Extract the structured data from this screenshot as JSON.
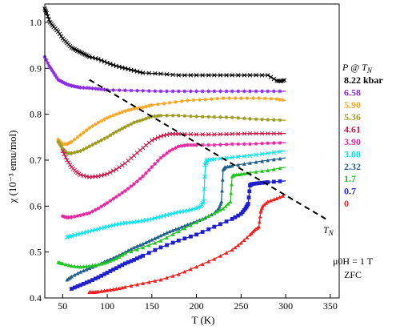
{
  "chart_data": {
    "type": "line",
    "xlabel": "T (K)",
    "ylabel": "χ (10⁻³ emu/mol)",
    "xlim": [
      30,
      360
    ],
    "ylim": [
      0.4,
      1.04
    ],
    "x_ticks": [
      50,
      100,
      150,
      200,
      250,
      300,
      350
    ],
    "y_ticks": [
      0.4,
      0.5,
      0.6,
      0.7,
      0.8,
      0.9,
      1.0
    ],
    "legend_title": "P @ T",
    "legend_title_sub": "N",
    "legend_placement": "right",
    "annotation_field": "μ0H = 1 T",
    "annotation_protocol": "ZFC",
    "tn_label": "T",
    "tn_label_sub": "N",
    "tn_line": {
      "x": [
        80,
        345
      ],
      "y": [
        0.875,
        0.572
      ]
    },
    "series": [
      {
        "name": "8.22 kbar",
        "color": "#000000",
        "marker": "x",
        "x": [
          30,
          32,
          36,
          40,
          45,
          50,
          55,
          60,
          65,
          70,
          75,
          80,
          90,
          100,
          110,
          120,
          130,
          140,
          160,
          180,
          200,
          220,
          240,
          260,
          280,
          290,
          295,
          300
        ],
        "y": [
          1.03,
          1.02,
          1.0,
          0.99,
          0.98,
          0.965,
          0.955,
          0.945,
          0.94,
          0.935,
          0.93,
          0.925,
          0.92,
          0.912,
          0.905,
          0.9,
          0.895,
          0.89,
          0.888,
          0.885,
          0.885,
          0.885,
          0.885,
          0.885,
          0.885,
          0.873,
          0.872,
          0.875
        ]
      },
      {
        "name": "6.58",
        "color": "#8a2be2",
        "marker": "star",
        "x": [
          30,
          35,
          40,
          45,
          50,
          55,
          60,
          65,
          70,
          80,
          90,
          100,
          120,
          140,
          160,
          180,
          200,
          220,
          240,
          260,
          280,
          300
        ],
        "y": [
          0.925,
          0.905,
          0.89,
          0.875,
          0.87,
          0.865,
          0.862,
          0.86,
          0.858,
          0.857,
          0.855,
          0.853,
          0.852,
          0.851,
          0.85,
          0.85,
          0.85,
          0.85,
          0.85,
          0.85,
          0.85,
          0.85
        ]
      },
      {
        "name": "5.90",
        "color": "#f5a623",
        "marker": "star",
        "x": [
          45,
          50,
          55,
          60,
          70,
          80,
          90,
          100,
          110,
          120,
          130,
          140,
          150,
          170,
          190,
          210,
          230,
          250,
          270,
          290,
          300
        ],
        "y": [
          0.745,
          0.735,
          0.735,
          0.74,
          0.755,
          0.77,
          0.782,
          0.792,
          0.8,
          0.807,
          0.812,
          0.815,
          0.82,
          0.825,
          0.83,
          0.832,
          0.835,
          0.835,
          0.835,
          0.833,
          0.83
        ]
      },
      {
        "name": "5.36",
        "color": "#9a9a1e",
        "marker": "star",
        "x": [
          45,
          50,
          55,
          60,
          70,
          80,
          90,
          100,
          110,
          120,
          130,
          140,
          150,
          160,
          180,
          200,
          220,
          240,
          260,
          280,
          300
        ],
        "y": [
          0.74,
          0.725,
          0.715,
          0.715,
          0.72,
          0.73,
          0.74,
          0.75,
          0.762,
          0.772,
          0.782,
          0.788,
          0.795,
          0.797,
          0.797,
          0.795,
          0.794,
          0.793,
          0.79,
          0.788,
          0.787
        ]
      },
      {
        "name": "4.61",
        "color": "#c8184a",
        "marker": "x",
        "x": [
          50,
          55,
          60,
          65,
          70,
          80,
          90,
          100,
          110,
          120,
          130,
          140,
          150,
          160,
          170,
          180,
          200,
          220,
          240,
          260,
          280,
          300
        ],
        "y": [
          0.72,
          0.7,
          0.685,
          0.675,
          0.668,
          0.663,
          0.665,
          0.67,
          0.68,
          0.693,
          0.71,
          0.727,
          0.743,
          0.752,
          0.757,
          0.757,
          0.756,
          0.756,
          0.757,
          0.758,
          0.758,
          0.758
        ]
      },
      {
        "name": "3.90",
        "color": "#e6259f",
        "marker": "star",
        "x": [
          50,
          55,
          60,
          70,
          80,
          90,
          100,
          110,
          120,
          130,
          140,
          150,
          160,
          170,
          180,
          190,
          200,
          220,
          240,
          260,
          280,
          300
        ],
        "y": [
          0.578,
          0.575,
          0.576,
          0.58,
          0.585,
          0.595,
          0.607,
          0.62,
          0.633,
          0.648,
          0.665,
          0.685,
          0.705,
          0.72,
          0.73,
          0.733,
          0.733,
          0.733,
          0.735,
          0.735,
          0.737,
          0.738
        ]
      },
      {
        "name": "3.08",
        "color": "#00e5ee",
        "marker": "x",
        "x": [
          55,
          60,
          70,
          80,
          90,
          100,
          110,
          120,
          130,
          140,
          150,
          160,
          170,
          180,
          190,
          200,
          205,
          208,
          210,
          212,
          220,
          240,
          260,
          280,
          300
        ],
        "y": [
          0.532,
          0.535,
          0.54,
          0.545,
          0.55,
          0.555,
          0.56,
          0.563,
          0.565,
          0.568,
          0.572,
          0.577,
          0.582,
          0.587,
          0.59,
          0.595,
          0.6,
          0.61,
          0.69,
          0.7,
          0.702,
          0.706,
          0.71,
          0.715,
          0.72
        ]
      },
      {
        "name": "2.32",
        "color": "#1d5f8a",
        "marker": "triangle",
        "x": [
          55,
          60,
          70,
          80,
          90,
          100,
          110,
          120,
          130,
          140,
          150,
          160,
          170,
          180,
          190,
          200,
          210,
          220,
          225,
          228,
          230,
          232,
          240,
          260,
          280,
          300
        ],
        "y": [
          0.44,
          0.447,
          0.457,
          0.465,
          0.473,
          0.482,
          0.49,
          0.5,
          0.51,
          0.518,
          0.527,
          0.536,
          0.545,
          0.552,
          0.56,
          0.567,
          0.575,
          0.585,
          0.595,
          0.61,
          0.68,
          0.685,
          0.688,
          0.694,
          0.7,
          0.705
        ]
      },
      {
        "name": "1.7",
        "color": "#22c422",
        "marker": "triangle",
        "x": [
          45,
          50,
          60,
          70,
          80,
          90,
          100,
          110,
          120,
          140,
          160,
          180,
          200,
          220,
          230,
          238,
          240,
          242,
          250,
          260,
          280,
          300
        ],
        "y": [
          0.478,
          0.475,
          0.47,
          0.468,
          0.47,
          0.473,
          0.478,
          0.486,
          0.497,
          0.51,
          0.525,
          0.545,
          0.565,
          0.585,
          0.595,
          0.61,
          0.665,
          0.668,
          0.67,
          0.673,
          0.678,
          0.685
        ]
      },
      {
        "name": "0.7",
        "color": "#1f1fcc",
        "marker": "square",
        "x": [
          60,
          70,
          80,
          90,
          100,
          110,
          120,
          130,
          140,
          160,
          180,
          200,
          220,
          240,
          250,
          255,
          258,
          260,
          262,
          270,
          280,
          300
        ],
        "y": [
          0.42,
          0.428,
          0.436,
          0.445,
          0.455,
          0.465,
          0.475,
          0.483,
          0.492,
          0.51,
          0.525,
          0.538,
          0.555,
          0.572,
          0.583,
          0.595,
          0.605,
          0.645,
          0.648,
          0.65,
          0.652,
          0.655
        ]
      },
      {
        "name": "0",
        "color": "#ee2020",
        "marker": "triangle",
        "x": [
          80,
          85,
          90,
          100,
          110,
          120,
          140,
          160,
          180,
          200,
          220,
          240,
          250,
          260,
          265,
          270,
          272,
          274,
          280,
          290,
          300
        ],
        "y": [
          0.413,
          0.413,
          0.414,
          0.417,
          0.42,
          0.424,
          0.432,
          0.44,
          0.452,
          0.468,
          0.485,
          0.505,
          0.52,
          0.538,
          0.548,
          0.555,
          0.588,
          0.6,
          0.61,
          0.617,
          0.625
        ]
      }
    ]
  }
}
